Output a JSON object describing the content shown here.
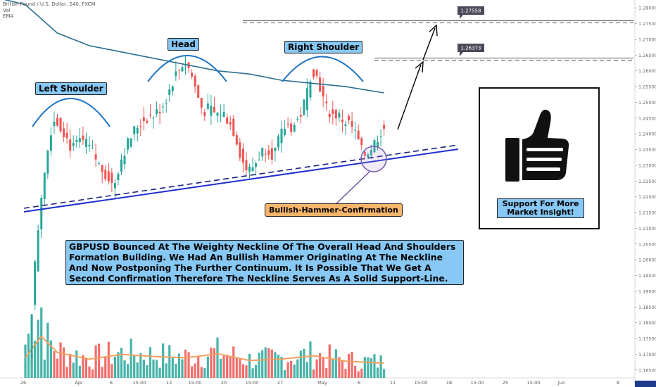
{
  "header": {
    "symbol_line": "British Pound / U.S. Dollar, 240, FXCM",
    "vol_label": "Vol",
    "ema_label": "EMA"
  },
  "annotations": {
    "left_shoulder": "Left Shoulder",
    "head": "Head",
    "right_shoulder": "Right Shoulder",
    "bullish_hammer": "Bullish-Hammer-Confirmation",
    "analysis_text": "GBPUSD Bounced At The Weighty Neckline Of The Overall Head And Shoulders Formation Building. We Had An Bullish Hammer Originating At The Neckline And Now Postponing The Further Continuum. It Is Possible That We Get A Second Confirmation Therefore The Neckline Serves As A Solid Support-Line.",
    "support_text": "Support For More Market Insight!",
    "thumbs_icon": "thumbs-up-icon"
  },
  "colors": {
    "up": "#26a69a",
    "down": "#ef5350",
    "neckline": "#1f2fd0",
    "ema": "#2d6f90",
    "vol_ma": "#f5a05f",
    "arc": "#1f73c4",
    "accent_box": "#87c8f4",
    "orange_box": "#f6b56a",
    "target_box": "#4a4a5a"
  },
  "chart_data": {
    "type": "candlestick",
    "title": "British Pound / U.S. Dollar, 240, FXCM",
    "price_axis": {
      "ylim": [
        1.1625,
        1.2825
      ],
      "ticks": [
        "1.28000",
        "1.27500",
        "1.27000",
        "1.26500",
        "1.26000",
        "1.25500",
        "1.25000",
        "1.24500",
        "1.24000",
        "1.23500",
        "1.23000",
        "1.22500",
        "1.22000",
        "1.21500",
        "1.21000",
        "1.20500",
        "1.20000",
        "1.19500",
        "1.19000",
        "1.18500",
        "1.18000",
        "1.17500",
        "1.17000",
        "1.16500"
      ]
    },
    "time_axis": {
      "ticks": [
        "26",
        "Apr",
        "6",
        "15:00",
        "13",
        "15:00",
        "20",
        "15:00",
        "27",
        "May",
        "6",
        "11",
        "15:00",
        "18",
        "15:00",
        "25",
        "15:00",
        "Jun",
        "8"
      ]
    },
    "targets": [
      {
        "label": "1.27558",
        "value": 1.27558
      },
      {
        "label": "1.26373",
        "value": 1.26373
      }
    ],
    "price_path": [
      [
        0,
        1.15
      ],
      [
        4,
        1.205
      ],
      [
        6,
        1.226
      ],
      [
        8,
        1.238
      ],
      [
        9,
        1.245
      ],
      [
        12,
        1.242
      ],
      [
        15,
        1.235
      ],
      [
        18,
        1.238
      ],
      [
        21,
        1.235
      ],
      [
        24,
        1.229
      ],
      [
        26,
        1.227
      ],
      [
        28,
        1.223
      ],
      [
        30,
        1.231
      ],
      [
        32,
        1.236
      ],
      [
        35,
        1.242
      ],
      [
        38,
        1.245
      ],
      [
        41,
        1.246
      ],
      [
        44,
        1.25
      ],
      [
        47,
        1.258
      ],
      [
        50,
        1.263
      ],
      [
        52,
        1.26
      ],
      [
        54,
        1.253
      ],
      [
        56,
        1.247
      ],
      [
        58,
        1.248
      ],
      [
        60,
        1.246
      ],
      [
        62,
        1.247
      ],
      [
        64,
        1.244
      ],
      [
        66,
        1.24
      ],
      [
        68,
        1.232
      ],
      [
        70,
        1.228
      ],
      [
        72,
        1.23
      ],
      [
        74,
        1.234
      ],
      [
        76,
        1.236
      ],
      [
        78,
        1.233
      ],
      [
        80,
        1.239
      ],
      [
        82,
        1.243
      ],
      [
        84,
        1.242
      ],
      [
        86,
        1.245
      ],
      [
        88,
        1.251
      ],
      [
        90,
        1.261
      ],
      [
        92,
        1.257
      ],
      [
        94,
        1.249
      ],
      [
        96,
        1.246
      ],
      [
        98,
        1.246
      ],
      [
        100,
        1.244
      ],
      [
        102,
        1.243
      ],
      [
        104,
        1.239
      ],
      [
        106,
        1.233
      ],
      [
        108,
        1.235
      ],
      [
        110,
        1.238
      ],
      [
        112,
        1.242
      ]
    ],
    "ema_path": [
      [
        0,
        1.281
      ],
      [
        10,
        1.272
      ],
      [
        20,
        1.268
      ],
      [
        30,
        1.266
      ],
      [
        40,
        1.264
      ],
      [
        50,
        1.262
      ],
      [
        60,
        1.26
      ],
      [
        70,
        1.259
      ],
      [
        80,
        1.257
      ],
      [
        90,
        1.256
      ],
      [
        100,
        1.255
      ],
      [
        112,
        1.253
      ]
    ],
    "neckline": {
      "start": [
        0,
        1.2145
      ],
      "end": [
        112,
        1.233
      ]
    },
    "volume_profile": [
      [
        0,
        30
      ],
      [
        5,
        62
      ],
      [
        10,
        38
      ],
      [
        20,
        28
      ],
      [
        30,
        35
      ],
      [
        40,
        32
      ],
      [
        50,
        30
      ],
      [
        60,
        36
      ],
      [
        70,
        26
      ],
      [
        80,
        28
      ],
      [
        90,
        33
      ],
      [
        100,
        25
      ],
      [
        112,
        22
      ]
    ]
  }
}
